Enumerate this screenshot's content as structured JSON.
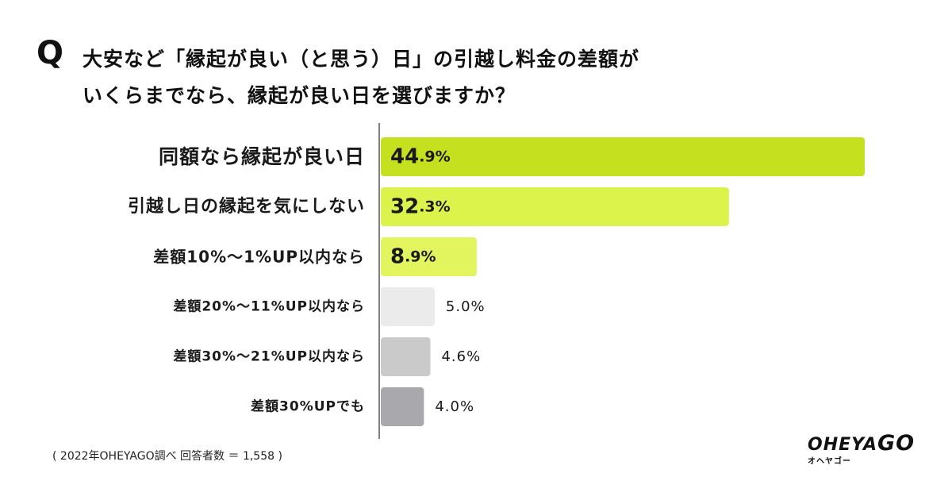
{
  "question": {
    "mark": "Q",
    "line1": "大安など「縁起が良い（と思う）日」の引越し料金の差額が",
    "line2": "いくらまでなら、縁起が良い日を選びますか？"
  },
  "chart_data": {
    "type": "bar",
    "orientation": "horizontal",
    "categories": [
      "同額なら縁起が良い日",
      "引越し日の縁起を気にしない",
      "差額10%〜1%UP以内なら",
      "差額20%〜11%UP以内なら",
      "差額30%〜21%UP以内なら",
      "差額30%UPでも"
    ],
    "values": [
      44.9,
      32.3,
      8.9,
      5.0,
      4.6,
      4.0
    ],
    "value_labels": [
      "44.9%",
      "32.3%",
      "8.9%",
      "5.0%",
      "4.6%",
      "4.0%"
    ],
    "colors": [
      "#c5e01e",
      "#dbf34a",
      "#e2f55e",
      "#ebebeb",
      "#cacaca",
      "#a9a8ad"
    ],
    "xlim": [
      0,
      44.9
    ],
    "grid": false,
    "legend": "none"
  },
  "footnote": "( 2022年OHEYAGO調べ 回答者数 ＝ 1,558 )",
  "logo": {
    "main": "OHEYA",
    "go": "GO",
    "sub": "オヘヤゴー"
  }
}
